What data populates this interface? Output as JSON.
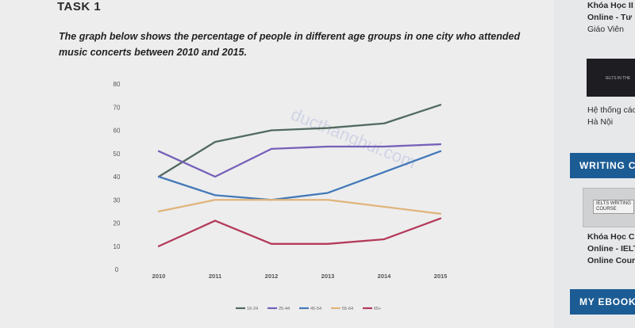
{
  "task_title": "TASK 1",
  "prompt": "The graph below shows the percentage of people in different age groups in one city who attended music concerts between 2010 and 2015.",
  "watermark": "ducthanghui.com",
  "colors": {
    "series_16_24": "#526a5e",
    "series_25_44": "#7560b8",
    "series_45_54": "#4479b8",
    "series_55_64": "#e0b57c",
    "series_65": "#b43a5a"
  },
  "chart_data": {
    "type": "line",
    "x": [
      "2010",
      "2011",
      "2012",
      "2013",
      "2014",
      "2015"
    ],
    "ylim": [
      0,
      80
    ],
    "yticks": [
      "0",
      "10",
      "20",
      "30",
      "40",
      "50",
      "60",
      "70",
      "80"
    ],
    "grid": false,
    "legend_position": "bottom",
    "series": [
      {
        "name": "16-24",
        "values": [
          40,
          55,
          60,
          61,
          63,
          71
        ]
      },
      {
        "name": "25-44",
        "values": [
          51,
          40,
          52,
          53,
          53,
          54
        ]
      },
      {
        "name": "45-54",
        "values": [
          40,
          32,
          30,
          33,
          42,
          51
        ]
      },
      {
        "name": "55-64",
        "values": [
          25,
          30,
          30,
          30,
          27,
          24
        ]
      },
      {
        "name": "65+",
        "values": [
          10,
          21,
          11,
          11,
          13,
          22
        ]
      }
    ]
  },
  "sidebar": {
    "course1_lines": [
      "Khóa Học II",
      "Online - Tư",
      "Giáo Viên"
    ],
    "thumb1_text": "IELTS IN THE",
    "course2_lines": [
      "Hệ thống các",
      "Hà Nội"
    ],
    "writing_bar": "WRITING C",
    "thumb2_text": [
      "IELTS WRITING",
      "COURSE"
    ],
    "course3_lines": [
      "Khóa Học Chữ",
      "Online - IELTS",
      "Online Course"
    ],
    "ebook_bar": "MY EBOOK"
  }
}
